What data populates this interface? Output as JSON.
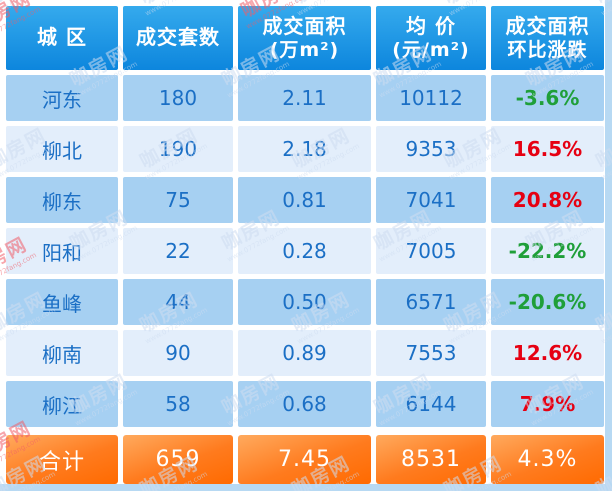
{
  "watermark": {
    "text": "咖房网",
    "url": "www.0772fang.com"
  },
  "colors": {
    "header_top": "#35aaed",
    "header_bottom": "#0d86dd",
    "row_medium": "#a6d0f2",
    "row_light": "#e3eefb",
    "data_text_blue": "#1b6fc5",
    "change_up_red": "#e60012",
    "change_down_green": "#1f9f39",
    "total_orange_top": "#ffaa5e",
    "total_orange_bottom": "#ff6a00",
    "page_background": "#b7d9f3"
  },
  "table": {
    "headers": [
      {
        "line1": "城 区",
        "line2": ""
      },
      {
        "line1": "成交套数",
        "line2": ""
      },
      {
        "line1": "成交面积",
        "line2": "(万m²)"
      },
      {
        "line1": "均 价",
        "line2": "(元/m²)"
      },
      {
        "line1": "成交面积",
        "line2": "环比涨跌"
      }
    ],
    "rows": [
      {
        "district": "河东",
        "units": "180",
        "area": "2.11",
        "price": "10112",
        "change": "-3.6%"
      },
      {
        "district": "柳北",
        "units": "190",
        "area": "2.18",
        "price": "9353",
        "change": "16.5%"
      },
      {
        "district": "柳东",
        "units": "75",
        "area": "0.81",
        "price": "7041",
        "change": "20.8%"
      },
      {
        "district": "阳和",
        "units": "22",
        "area": "0.28",
        "price": "7005",
        "change": "-22.2%"
      },
      {
        "district": "鱼峰",
        "units": "44",
        "area": "0.50",
        "price": "6571",
        "change": "-20.6%"
      },
      {
        "district": "柳南",
        "units": "90",
        "area": "0.89",
        "price": "7553",
        "change": "12.6%"
      },
      {
        "district": "柳江",
        "units": "58",
        "area": "0.68",
        "price": "6144",
        "change": "7.9%"
      }
    ],
    "total": {
      "district": "合计",
      "units": "659",
      "area": "7.45",
      "price": "8531",
      "change": "4.3%"
    }
  },
  "chart_data": {
    "type": "table",
    "title": "",
    "columns": [
      "城区",
      "成交套数",
      "成交面积(万m²)",
      "均价(元/m²)",
      "成交面积环比涨跌"
    ],
    "rows": [
      [
        "河东",
        180,
        2.11,
        10112,
        "-3.6%"
      ],
      [
        "柳北",
        190,
        2.18,
        9353,
        "16.5%"
      ],
      [
        "柳东",
        75,
        0.81,
        7041,
        "20.8%"
      ],
      [
        "阳和",
        22,
        0.28,
        7005,
        "-22.2%"
      ],
      [
        "鱼峰",
        44,
        0.5,
        6571,
        "-20.6%"
      ],
      [
        "柳南",
        90,
        0.89,
        7553,
        "12.6%"
      ],
      [
        "柳江",
        58,
        0.68,
        6144,
        "7.9%"
      ]
    ],
    "total_row": [
      "合计",
      659,
      7.45,
      8531,
      "4.3%"
    ],
    "notes": "red = increase, green = decrease"
  }
}
